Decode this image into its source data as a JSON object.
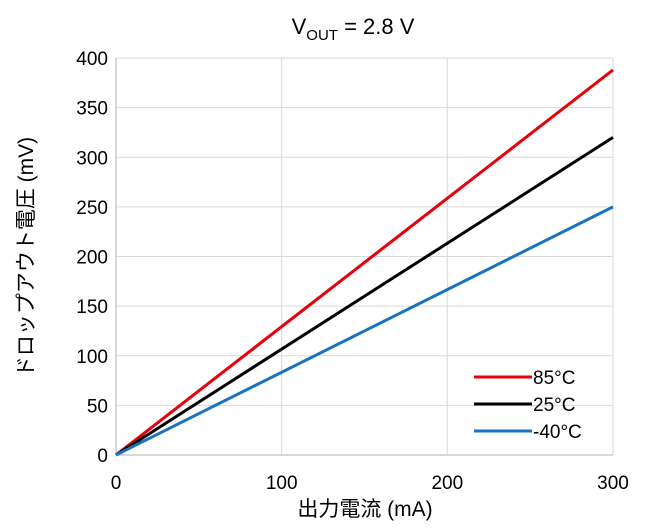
{
  "chart_data": {
    "type": "line",
    "title": "V",
    "title_sub": "OUT",
    "title_suffix": " = 2.8 V",
    "xlabel": "出力電流 (mA)",
    "ylabel": "ドロップアウト電圧 (mV)",
    "xlim": [
      0,
      300
    ],
    "ylim": [
      0,
      400
    ],
    "xticks": [
      0,
      100,
      200,
      300
    ],
    "yticks": [
      0,
      50,
      100,
      150,
      200,
      250,
      300,
      350,
      400
    ],
    "grid": true,
    "legend_position": "bottom-right",
    "series": [
      {
        "name": "85°C",
        "color": "#e8000b",
        "x": [
          0,
          300
        ],
        "y": [
          0,
          388
        ]
      },
      {
        "name": "25°C",
        "color": "#000000",
        "x": [
          0,
          300
        ],
        "y": [
          0,
          320
        ]
      },
      {
        "name": "-40°C",
        "color": "#1a73c2",
        "x": [
          0,
          300
        ],
        "y": [
          0,
          250
        ]
      }
    ]
  }
}
